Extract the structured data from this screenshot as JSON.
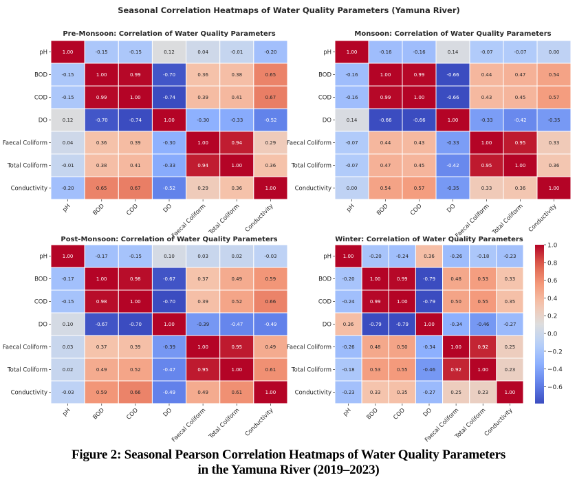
{
  "figure": {
    "suptitle": "Seasonal Correlation Heatmaps of Water Quality Parameters (Yamuna River)",
    "caption_line1": "Figure 2: Seasonal Pearson Correlation Heatmaps of Water Quality Parameters",
    "caption_line2": "in the Yamuna River (2019–2023)"
  },
  "chart_data": [
    {
      "type": "heatmap",
      "title": "Pre-Monsoon: Correlation of Water Quality Parameters",
      "labels": [
        "pH",
        "BOD",
        "COD",
        "DO",
        "Faecal Coliform",
        "Total Coliform",
        "Conductivity"
      ],
      "colormap": "coolwarm",
      "values": [
        [
          1.0,
          -0.15,
          -0.15,
          0.12,
          0.04,
          -0.01,
          -0.2
        ],
        [
          -0.15,
          1.0,
          0.99,
          -0.7,
          0.36,
          0.38,
          0.65
        ],
        [
          -0.15,
          0.99,
          1.0,
          -0.74,
          0.39,
          0.41,
          0.67
        ],
        [
          0.12,
          -0.7,
          -0.74,
          1.0,
          -0.3,
          -0.33,
          -0.52
        ],
        [
          0.04,
          0.36,
          0.39,
          -0.3,
          1.0,
          0.94,
          0.29
        ],
        [
          -0.01,
          0.38,
          0.41,
          -0.33,
          0.94,
          1.0,
          0.36
        ],
        [
          -0.2,
          0.65,
          0.67,
          -0.52,
          0.29,
          0.36,
          1.0
        ]
      ]
    },
    {
      "type": "heatmap",
      "title": "Monsoon: Correlation of Water Quality Parameters",
      "labels": [
        "pH",
        "BOD",
        "COD",
        "DO",
        "Faecal Coliform",
        "Total Coliform",
        "Conductivity"
      ],
      "colormap": "coolwarm",
      "values": [
        [
          1.0,
          -0.16,
          -0.16,
          0.14,
          -0.07,
          -0.07,
          -0.0
        ],
        [
          -0.16,
          1.0,
          0.99,
          -0.66,
          0.44,
          0.47,
          0.54
        ],
        [
          -0.16,
          0.99,
          1.0,
          -0.66,
          0.43,
          0.45,
          0.57
        ],
        [
          0.14,
          -0.66,
          -0.66,
          1.0,
          -0.33,
          -0.42,
          -0.35
        ],
        [
          -0.07,
          0.44,
          0.43,
          -0.33,
          1.0,
          0.95,
          0.33
        ],
        [
          -0.07,
          0.47,
          0.45,
          -0.42,
          0.95,
          1.0,
          0.36
        ],
        [
          -0.0,
          0.54,
          0.57,
          -0.35,
          0.33,
          0.36,
          1.0
        ]
      ]
    },
    {
      "type": "heatmap",
      "title": "Post-Monsoon: Correlation of Water Quality Parameters",
      "labels": [
        "pH",
        "BOD",
        "COD",
        "DO",
        "Faecal Coliform",
        "Total Coliform",
        "Conductivity"
      ],
      "colormap": "coolwarm",
      "values": [
        [
          1.0,
          -0.17,
          -0.15,
          0.1,
          0.03,
          0.02,
          -0.03
        ],
        [
          -0.17,
          1.0,
          0.98,
          -0.67,
          0.37,
          0.49,
          0.59
        ],
        [
          -0.15,
          0.98,
          1.0,
          -0.7,
          0.39,
          0.52,
          0.66
        ],
        [
          0.1,
          -0.67,
          -0.7,
          1.0,
          -0.39,
          -0.47,
          -0.49
        ],
        [
          0.03,
          0.37,
          0.39,
          -0.39,
          1.0,
          0.95,
          0.49
        ],
        [
          0.02,
          0.49,
          0.52,
          -0.47,
          0.95,
          1.0,
          0.61
        ],
        [
          -0.03,
          0.59,
          0.66,
          -0.49,
          0.49,
          0.61,
          1.0
        ]
      ]
    },
    {
      "type": "heatmap",
      "title": "Winter: Correlation of Water Quality Parameters",
      "labels": [
        "pH",
        "BOD",
        "COD",
        "DO",
        "Faecal Coliform",
        "Total Coliform",
        "Conductivity"
      ],
      "colormap": "coolwarm",
      "values": [
        [
          1.0,
          -0.2,
          -0.24,
          0.36,
          -0.26,
          -0.18,
          -0.23
        ],
        [
          -0.2,
          1.0,
          0.99,
          -0.79,
          0.48,
          0.53,
          0.33
        ],
        [
          -0.24,
          0.99,
          1.0,
          -0.79,
          0.5,
          0.55,
          0.35
        ],
        [
          0.36,
          -0.79,
          -0.79,
          1.0,
          -0.34,
          -0.46,
          -0.27
        ],
        [
          -0.26,
          0.48,
          0.5,
          -0.34,
          1.0,
          0.92,
          0.25
        ],
        [
          -0.18,
          0.53,
          0.55,
          -0.46,
          0.92,
          1.0,
          0.23
        ],
        [
          -0.23,
          0.33,
          0.35,
          -0.27,
          0.25,
          0.23,
          1.0
        ]
      ],
      "colorbar": {
        "range": [
          -0.79,
          1.0
        ],
        "ticks": [
          1.0,
          0.8,
          0.6,
          0.4,
          0.2,
          0.0,
          -0.2,
          -0.4,
          -0.6
        ],
        "tick_labels": [
          "1.0",
          "0.8",
          "0.6",
          "0.4",
          "0.2",
          "0.0",
          "−0.2",
          "−0.4",
          "−0.6"
        ]
      }
    }
  ]
}
